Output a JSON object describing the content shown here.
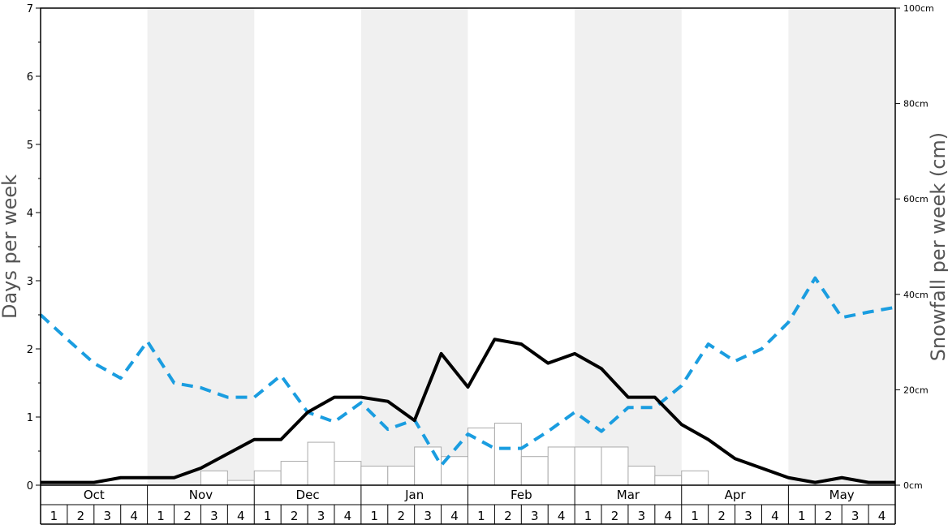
{
  "chart_data": {
    "type": "bar+line",
    "months": [
      "Oct",
      "Nov",
      "Dec",
      "Jan",
      "Feb",
      "Mar",
      "Apr",
      "May"
    ],
    "week_labels": [
      "1",
      "2",
      "3",
      "4"
    ],
    "left_axis": {
      "label": "Days per week",
      "ylim": [
        0,
        7
      ],
      "ticks": [
        "0",
        "1",
        "2",
        "3",
        "4",
        "5",
        "6",
        "7"
      ]
    },
    "right_axis": {
      "label": "Snowfall per week (cm)",
      "ylim": [
        0,
        100
      ],
      "ticks": [
        "0cm",
        "20cm",
        "40cm",
        "60cm",
        "80cm",
        "100cm"
      ]
    },
    "shaded_months": [
      "Nov",
      "Jan",
      "Mar",
      "May"
    ],
    "snowfall_bars_cm": [
      0,
      0,
      0,
      0,
      0,
      0,
      3,
      1,
      3,
      5,
      9,
      5,
      4,
      4,
      8,
      6,
      12,
      13,
      6,
      8,
      8,
      8,
      4,
      2,
      3,
      0,
      0,
      0,
      0,
      0,
      0,
      0
    ],
    "snow_days_line": [
      0.04,
      0.04,
      0.04,
      0.11,
      0.11,
      0.11,
      0.25,
      0.46,
      0.67,
      0.67,
      1.07,
      1.29,
      1.29,
      1.23,
      0.95,
      1.93,
      1.44,
      2.14,
      2.07,
      1.79,
      1.93,
      1.71,
      1.29,
      1.29,
      0.89,
      0.67,
      0.39,
      0.25,
      0.11,
      0.04,
      0.11,
      0.04,
      0.04
    ],
    "snow_days_color": "#000000",
    "dashed_line": [
      2.5,
      2.14,
      1.79,
      1.57,
      2.11,
      1.5,
      1.43,
      1.29,
      1.29,
      1.61,
      1.07,
      0.93,
      1.21,
      0.82,
      0.96,
      0.29,
      0.75,
      0.54,
      0.54,
      0.79,
      1.07,
      0.79,
      1.14,
      1.14,
      1.46,
      2.07,
      1.82,
      2.0,
      2.39,
      3.04,
      2.46,
      2.54,
      2.61
    ],
    "dashed_line_color": "#1a9de0",
    "bar_fill": "#ffffff",
    "bar_stroke": "#aaaaaa",
    "shade_color": "#f0f0f0"
  }
}
